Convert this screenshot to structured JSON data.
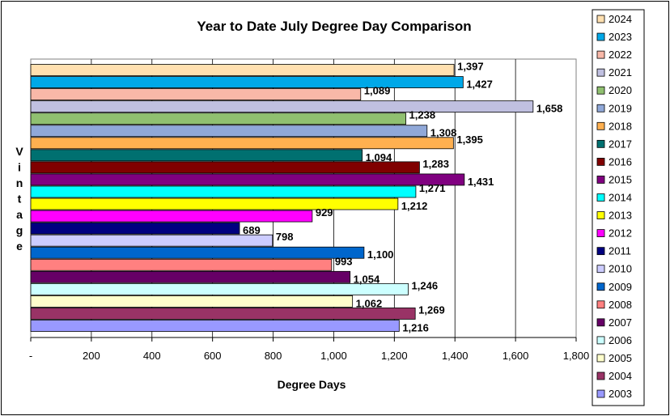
{
  "chart_data": {
    "type": "bar",
    "orientation": "horizontal",
    "title": "Year to Date July Degree Day Comparison",
    "xlabel": "Degree Days",
    "ylabel": "Vintage",
    "xlim": [
      0,
      1800
    ],
    "xticks": [
      0,
      200,
      400,
      600,
      800,
      1000,
      1200,
      1400,
      1600,
      1800
    ],
    "xtick_labels": [
      "-",
      "200",
      "400",
      "600",
      "800",
      "1,000",
      "1,200",
      "1,400",
      "1,600",
      "1,800"
    ],
    "grid": true,
    "legend_position": "right",
    "series": [
      {
        "name": "2024",
        "value": 1397,
        "label": "1,397",
        "color": "#FFE0B0"
      },
      {
        "name": "2023",
        "value": 1427,
        "label": "1,427",
        "color": "#00A8E8"
      },
      {
        "name": "2022",
        "value": 1089,
        "label": "1,089",
        "color": "#F8B8A8"
      },
      {
        "name": "2021",
        "value": 1658,
        "label": "1,658",
        "color": "#C0C0E0"
      },
      {
        "name": "2020",
        "value": 1238,
        "label": "1,238",
        "color": "#90C070"
      },
      {
        "name": "2019",
        "value": 1308,
        "label": "1,308",
        "color": "#90A8D8"
      },
      {
        "name": "2018",
        "value": 1395,
        "label": "1,395",
        "color": "#FFB050"
      },
      {
        "name": "2017",
        "value": 1094,
        "label": "1,094",
        "color": "#007070"
      },
      {
        "name": "2016",
        "value": 1283,
        "label": "1,283",
        "color": "#800000"
      },
      {
        "name": "2015",
        "value": 1431,
        "label": "1,431",
        "color": "#800080"
      },
      {
        "name": "2014",
        "value": 1271,
        "label": "1,271",
        "color": "#00FFFF"
      },
      {
        "name": "2013",
        "value": 1212,
        "label": "1,212",
        "color": "#FFFF00"
      },
      {
        "name": "2012",
        "value": 929,
        "label": "929",
        "color": "#FF00FF"
      },
      {
        "name": "2011",
        "value": 689,
        "label": "689",
        "color": "#000080"
      },
      {
        "name": "2010",
        "value": 798,
        "label": "798",
        "color": "#CCCCFF"
      },
      {
        "name": "2009",
        "value": 1100,
        "label": "1,100",
        "color": "#0066CC"
      },
      {
        "name": "2008",
        "value": 993,
        "label": "993",
        "color": "#FF8080"
      },
      {
        "name": "2007",
        "value": 1054,
        "label": "1,054",
        "color": "#660066"
      },
      {
        "name": "2006",
        "value": 1246,
        "label": "1,246",
        "color": "#CCFFFF"
      },
      {
        "name": "2005",
        "value": 1062,
        "label": "1,062",
        "color": "#FFFFCC"
      },
      {
        "name": "2004",
        "value": 1269,
        "label": "1,269",
        "color": "#993366"
      },
      {
        "name": "2003",
        "value": 1216,
        "label": "1,216",
        "color": "#9999FF"
      }
    ]
  }
}
